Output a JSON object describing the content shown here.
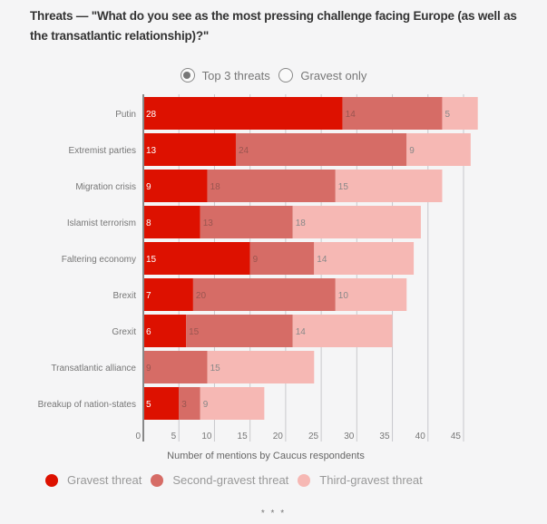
{
  "title": "Threats — \"What do you see as the most pressing challenge facing Europe (as well as the transatlantic relationship)?\"",
  "toggle": {
    "options": [
      {
        "label": "Top 3 threats",
        "selected": true
      },
      {
        "label": "Gravest only",
        "selected": false
      }
    ]
  },
  "chart_data": {
    "type": "bar",
    "orientation": "horizontal",
    "stacked": true,
    "title": "Threats — \"What do you see as the most pressing challenge facing Europe (as well as the transatlantic relationship)?\"",
    "xlabel": "Number of mentions by Caucus respondents",
    "ylabel": "",
    "xlim": [
      0,
      45
    ],
    "xticks": [
      0,
      5,
      10,
      15,
      20,
      25,
      30,
      35,
      40,
      45
    ],
    "grid": true,
    "legend_position": "bottom-left",
    "categories": [
      "Putin",
      "Extremist parties",
      "Migration crisis",
      "Islamist terrorism",
      "Faltering economy",
      "Brexit",
      "Grexit",
      "Transatlantic alliance",
      "Breakup of nation-states"
    ],
    "series": [
      {
        "name": "Gravest threat",
        "color": "#dd1100",
        "label_color": "#ffffff",
        "values": [
          28,
          13,
          9,
          8,
          15,
          7,
          6,
          0,
          5
        ]
      },
      {
        "name": "Second-gravest threat",
        "color": "#d66c66",
        "label_color": "#9a5550",
        "values": [
          14,
          24,
          18,
          13,
          9,
          20,
          15,
          9,
          3
        ]
      },
      {
        "name": "Third-gravest threat",
        "color": "#f6b8b4",
        "label_color": "#888888",
        "values": [
          5,
          9,
          15,
          18,
          14,
          10,
          14,
          15,
          9
        ]
      }
    ]
  },
  "footer": {
    "more": "* * *"
  }
}
